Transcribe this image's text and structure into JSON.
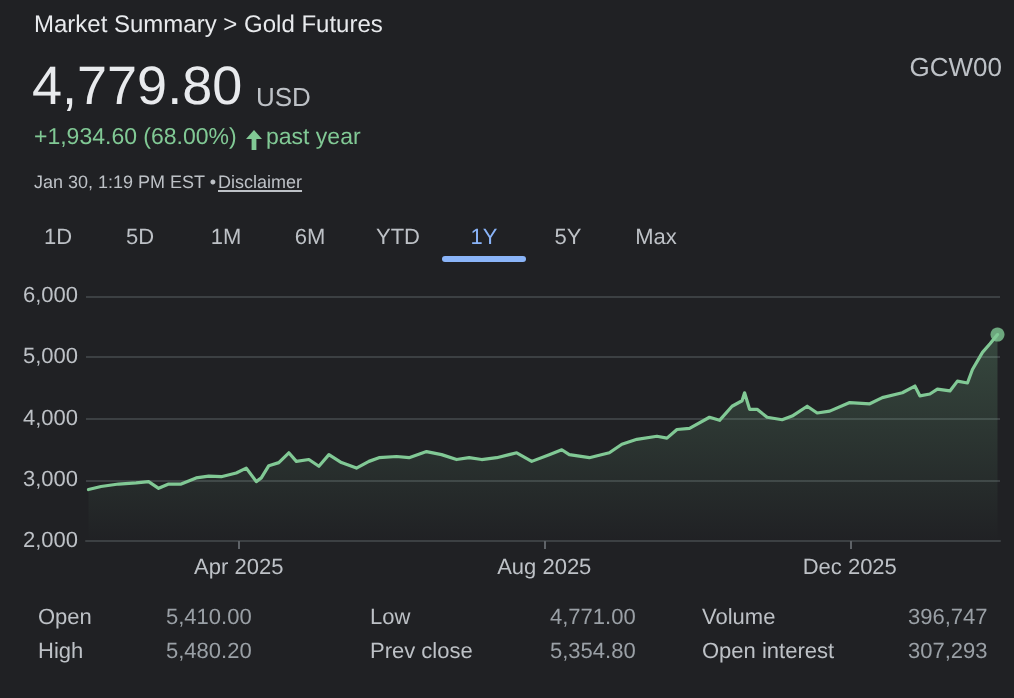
{
  "chart_data": {
    "type": "area",
    "title": "Market Summary > Gold Futures",
    "annotations": [
      "4,779.80",
      "USD",
      "+1,934.60 (68.00%)",
      "past year",
      "Jan 30, 1:19 PM EST •",
      "Disclaimer",
      "GCW00",
      "1D",
      "5D",
      "1M",
      "6M",
      "YTD",
      "1Y",
      "5Y",
      "Max",
      "Open",
      "5,410.00",
      "Low",
      "4,771.00",
      "Volume",
      "396,747",
      "High",
      "5,480.20",
      "Prev close",
      "5,354.80",
      "Open interest",
      "307,293"
    ],
    "xlim": [
      "2025-01-30",
      "2026-01-30"
    ],
    "xticks": [
      {
        "value": "2025-04-01",
        "label": "Apr 2025"
      },
      {
        "value": "2025-08-01",
        "label": "Aug 2025"
      },
      {
        "value": "2025-12-01",
        "label": "Dec 2025"
      }
    ],
    "ylim": [
      2000,
      6000
    ],
    "yticks": [
      {
        "value": 2000,
        "label": "2,000"
      },
      {
        "value": 3000,
        "label": "3,000"
      },
      {
        "value": 4000,
        "label": "4,000"
      },
      {
        "value": 5000,
        "label": "5,000"
      },
      {
        "value": 6000,
        "label": "6,000"
      }
    ],
    "grid": "y",
    "series": [
      {
        "color": "#81c995",
        "marker": "none",
        "x": [
          "2025-01-31",
          "2025-02-05",
          "2025-02-12",
          "2025-02-19",
          "2025-02-24",
          "2025-02-28",
          "2025-03-04",
          "2025-03-09",
          "2025-03-15",
          "2025-03-20",
          "2025-03-25",
          "2025-03-31",
          "2025-04-04",
          "2025-04-08",
          "2025-04-10",
          "2025-04-13",
          "2025-04-17",
          "2025-04-21",
          "2025-04-24",
          "2025-04-29",
          "2025-05-03",
          "2025-05-07",
          "2025-05-12",
          "2025-05-18",
          "2025-05-23",
          "2025-05-27",
          "2025-06-03",
          "2025-06-08",
          "2025-06-15",
          "2025-06-21",
          "2025-06-27",
          "2025-07-02",
          "2025-07-07",
          "2025-07-13",
          "2025-07-18",
          "2025-07-21",
          "2025-07-27",
          "2025-08-03",
          "2025-08-08",
          "2025-08-11",
          "2025-08-19",
          "2025-08-27",
          "2025-09-01",
          "2025-09-07",
          "2025-09-15",
          "2025-09-19",
          "2025-09-23",
          "2025-09-28",
          "2025-10-06",
          "2025-10-10",
          "2025-10-15",
          "2025-10-19",
          "2025-10-20",
          "2025-10-22",
          "2025-10-25",
          "2025-10-29",
          "2025-11-04",
          "2025-11-08",
          "2025-11-14",
          "2025-11-18",
          "2025-11-23",
          "2025-12-01",
          "2025-12-09",
          "2025-12-14",
          "2025-12-22",
          "2025-12-27",
          "2025-12-29",
          "2026-01-02",
          "2026-01-05",
          "2026-01-10",
          "2026-01-13",
          "2026-01-17",
          "2026-01-19",
          "2026-01-23",
          "2026-01-26",
          "2026-01-29"
        ],
        "values": [
          2840,
          2890,
          2930,
          2950,
          2970,
          2860,
          2930,
          2930,
          3030,
          3060,
          3050,
          3110,
          3190,
          2970,
          3030,
          3230,
          3280,
          3440,
          3300,
          3330,
          3220,
          3410,
          3280,
          3190,
          3300,
          3360,
          3380,
          3360,
          3460,
          3410,
          3330,
          3360,
          3330,
          3360,
          3410,
          3440,
          3300,
          3410,
          3490,
          3410,
          3360,
          3440,
          3580,
          3660,
          3710,
          3680,
          3820,
          3840,
          4020,
          3970,
          4200,
          4290,
          4420,
          4150,
          4150,
          4020,
          3980,
          4040,
          4200,
          4090,
          4120,
          4260,
          4240,
          4340,
          4420,
          4530,
          4370,
          4400,
          4480,
          4450,
          4610,
          4580,
          4800,
          5080,
          5220,
          5370
        ]
      },
      {
        "type": "scatter",
        "color": "#81c995",
        "marker": "circle",
        "x": [
          "2026-01-29"
        ],
        "values": [
          5370
        ]
      }
    ]
  }
}
